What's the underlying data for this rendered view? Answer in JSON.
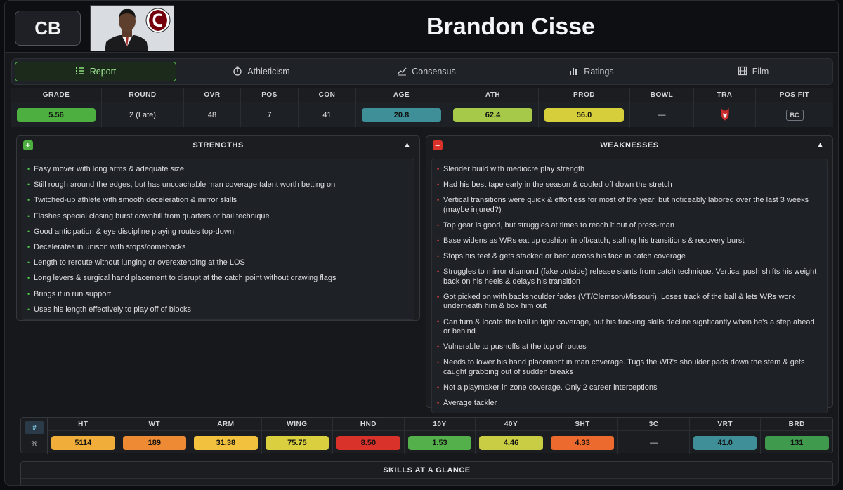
{
  "header": {
    "position": "CB",
    "name": "Brandon Cisse"
  },
  "tabs": [
    {
      "label": "Report",
      "icon": "list-icon",
      "active": true
    },
    {
      "label": "Athleticism",
      "icon": "stopwatch-icon",
      "active": false
    },
    {
      "label": "Consensus",
      "icon": "trend-chart-icon",
      "active": false
    },
    {
      "label": "Ratings",
      "icon": "bar-chart-icon",
      "active": false
    },
    {
      "label": "Film",
      "icon": "film-icon",
      "active": false
    }
  ],
  "stats": {
    "grade": {
      "label": "GRADE",
      "value": "5.56",
      "color": "#4caf3f"
    },
    "round": {
      "label": "ROUND",
      "value": "2 (Late)"
    },
    "ovr": {
      "label": "OVR",
      "value": "48"
    },
    "pos": {
      "label": "POS",
      "value": "7"
    },
    "con": {
      "label": "CON",
      "value": "41"
    },
    "age": {
      "label": "AGE",
      "value": "20.8",
      "color": "#3e8f98"
    },
    "ath": {
      "label": "ATH",
      "value": "62.4",
      "color": "#a6c94a"
    },
    "prod": {
      "label": "PROD",
      "value": "56.0",
      "color": "#d6cf3b"
    },
    "bowl": {
      "label": "BOWL",
      "value": "—"
    },
    "tra": {
      "label": "TRA",
      "icon": "wolf-logo-icon"
    },
    "posfit": {
      "label": "POS FIT",
      "value": "BC"
    }
  },
  "strengths": {
    "title": "STRENGTHS",
    "items": [
      "Easy mover with long arms & adequate size",
      "Still rough around the edges, but has uncoachable man coverage talent worth betting on",
      "Twitched-up athlete with smooth deceleration & mirror skills",
      "Flashes special closing burst downhill from quarters or bail technique",
      "Good anticipation & eye discipline playing routes top-down",
      "Decelerates in unison with stops/comebacks",
      "Length to reroute without lunging or overextending at the LOS",
      "Long levers & surgical hand placement to disrupt at the catch point without drawing flags",
      "Brings it in run support",
      "Uses his length effectively to play off of blocks"
    ]
  },
  "weaknesses": {
    "title": "WEAKNESSES",
    "items": [
      "Slender build with mediocre play strength",
      "Had his best tape early in the season & cooled off down the stretch",
      "Vertical transitions were quick & effortless for most of the year, but noticeably labored over the last 3 weeks (maybe injured?)",
      "Top gear is good, but struggles at times to reach it out of press-man",
      "Base widens as WRs eat up cushion in off/catch, stalling his transitions & recovery burst",
      "Stops his feet & gets stacked or beat across his face in catch coverage",
      "Struggles to mirror diamond (fake outside) release slants from catch technique. Vertical push shifts his weight back on his heels & delays his transition",
      "Got picked on with backshoulder fades (VT/Clemson/Missouri). Loses track of the ball & lets WRs work underneath him & box him out",
      "Can turn & locate the ball in tight coverage, but his tracking skills decline signficantly when he's a step ahead or behind",
      "Vulnerable to pushoffs at the top of routes",
      "Needs to lower his hand placement in man coverage. Tugs the WR's shoulder pads down the stem & gets caught grabbing out of sudden breaks",
      "Not a playmaker in zone coverage. Only 2 career interceptions",
      "Average tackler"
    ]
  },
  "measurements": {
    "toggle_hash": "#",
    "toggle_pct": "%",
    "cols": [
      {
        "label": "HT",
        "value": "5114",
        "color": "#f0ad3a"
      },
      {
        "label": "WT",
        "value": "189",
        "color": "#ee8a34"
      },
      {
        "label": "ARM",
        "value": "31.38",
        "color": "#f2c23e"
      },
      {
        "label": "WING",
        "value": "75.75",
        "color": "#d9cf3f"
      },
      {
        "label": "HND",
        "value": "8.50",
        "color": "#d8322b"
      },
      {
        "label": "10Y",
        "value": "1.53",
        "color": "#54b04a"
      },
      {
        "label": "40Y",
        "value": "4.46",
        "color": "#c8cd43"
      },
      {
        "label": "SHT",
        "value": "4.33",
        "color": "#ec6a2e"
      },
      {
        "label": "3C",
        "value": "—"
      },
      {
        "label": "VRT",
        "value": "41.0",
        "color": "#3e8f98"
      },
      {
        "label": "BRD",
        "value": "131",
        "color": "#3f9a4d"
      }
    ]
  },
  "glance": {
    "title": "SKILLS AT A GLANCE"
  }
}
